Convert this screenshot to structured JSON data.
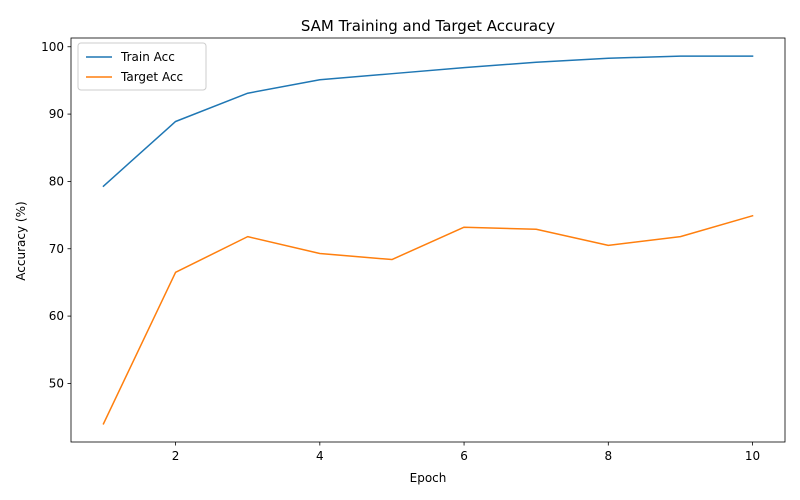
{
  "chart_data": {
    "type": "line",
    "title": "SAM Training and Target Accuracy",
    "xlabel": "Epoch",
    "ylabel": "Accuracy (%)",
    "x": [
      1,
      2,
      3,
      4,
      5,
      6,
      7,
      8,
      9,
      10
    ],
    "series": [
      {
        "name": "Train Acc",
        "color": "#1f77b4",
        "values": [
          79.3,
          88.9,
          93.1,
          95.1,
          96.0,
          96.9,
          97.7,
          98.3,
          98.6,
          98.6
        ]
      },
      {
        "name": "Target Acc",
        "color": "#ff7f0e",
        "values": [
          44.0,
          66.5,
          71.8,
          69.3,
          68.4,
          73.2,
          72.9,
          70.5,
          71.8,
          74.9
        ]
      }
    ],
    "xlim": [
      0.55,
      10.45
    ],
    "ylim": [
      41.3,
      101.3
    ],
    "xticks": [
      2,
      4,
      6,
      8,
      10
    ],
    "yticks": [
      50,
      60,
      70,
      80,
      90,
      100
    ],
    "grid": false,
    "legend_position": "top-left"
  }
}
